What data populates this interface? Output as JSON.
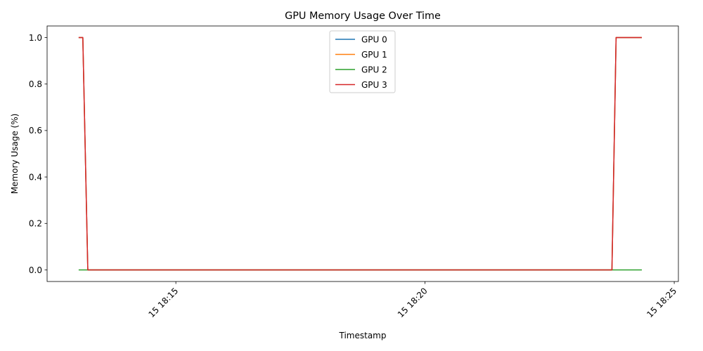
{
  "chart_data": {
    "type": "line",
    "title": "GPU Memory Usage Over Time",
    "xlabel": "Timestamp",
    "ylabel": "Memory Usage (%)",
    "x_type": "time",
    "xlim": [
      "18:12:25",
      "18:25:05"
    ],
    "ylim": [
      -0.05,
      1.05
    ],
    "x_ticks": [
      {
        "value": "18:15:00",
        "label": "15 18:15"
      },
      {
        "value": "18:20:00",
        "label": "15 18:20"
      },
      {
        "value": "18:25:00",
        "label": "15 18:25"
      }
    ],
    "y_ticks": [
      {
        "value": 0.0,
        "label": "0.0"
      },
      {
        "value": 0.2,
        "label": "0.2"
      },
      {
        "value": 0.4,
        "label": "0.4"
      },
      {
        "value": 0.6,
        "label": "0.6"
      },
      {
        "value": 0.8,
        "label": "0.8"
      },
      {
        "value": 1.0,
        "label": "1.0"
      }
    ],
    "grid": false,
    "legend_position": "upper center",
    "series": [
      {
        "name": "GPU 0",
        "color": "#1f77b4",
        "points": [
          [
            "18:13:03",
            1.0
          ],
          [
            "18:13:08",
            1.0
          ],
          [
            "18:13:14",
            0.0
          ],
          [
            "18:23:45",
            0.0
          ],
          [
            "18:23:50",
            1.0
          ],
          [
            "18:24:21",
            1.0
          ]
        ]
      },
      {
        "name": "GPU 1",
        "color": "#ff7f0e",
        "points": [
          [
            "18:13:03",
            1.0
          ],
          [
            "18:13:08",
            1.0
          ],
          [
            "18:13:14",
            0.0
          ],
          [
            "18:23:45",
            0.0
          ],
          [
            "18:23:50",
            1.0
          ],
          [
            "18:24:21",
            1.0
          ]
        ]
      },
      {
        "name": "GPU 2",
        "color": "#2ca02c",
        "points": [
          [
            "18:13:03",
            0.0
          ],
          [
            "18:24:21",
            0.0
          ]
        ]
      },
      {
        "name": "GPU 3",
        "color": "#d62728",
        "points": [
          [
            "18:13:03",
            1.0
          ],
          [
            "18:13:08",
            1.0
          ],
          [
            "18:13:14",
            0.0
          ],
          [
            "18:23:45",
            0.0
          ],
          [
            "18:23:50",
            1.0
          ],
          [
            "18:24:21",
            1.0
          ]
        ]
      }
    ]
  }
}
